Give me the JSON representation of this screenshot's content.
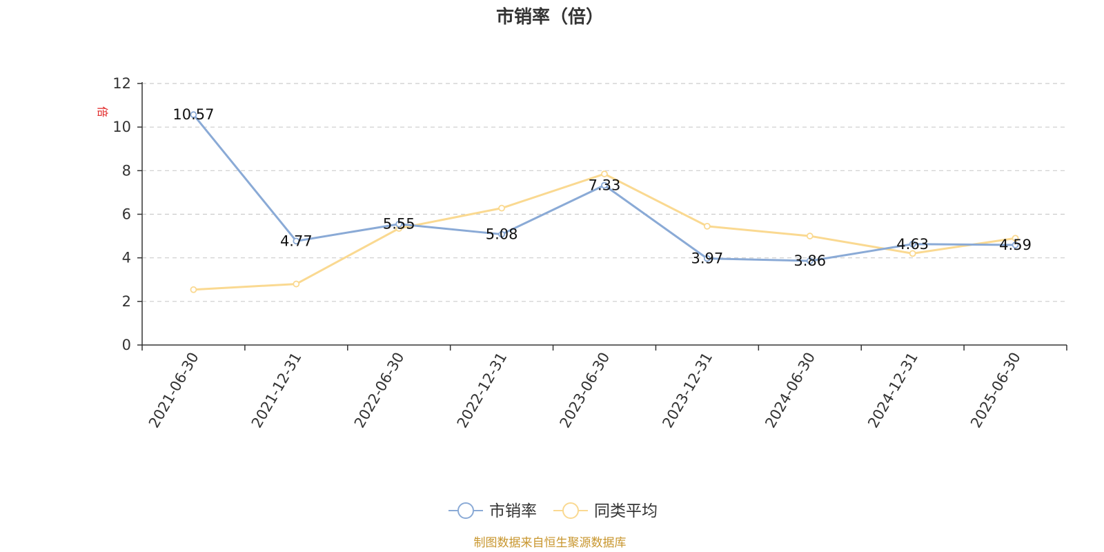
{
  "chart_data": {
    "type": "line",
    "title": "市销率（倍）",
    "y_unit_label": "倍",
    "categories": [
      "2021-06-30",
      "2021-12-31",
      "2022-06-30",
      "2022-12-31",
      "2023-06-30",
      "2023-12-31",
      "2024-06-30",
      "2024-12-31",
      "2025-06-30"
    ],
    "series": [
      {
        "name": "市销率",
        "color": "#8aaad6",
        "values": [
          10.57,
          4.77,
          5.55,
          5.08,
          7.33,
          3.97,
          3.86,
          4.63,
          4.59
        ],
        "labels": [
          "10.57",
          "4.77",
          "5.55",
          "5.08",
          "7.33",
          "3.97",
          "3.86",
          "4.63",
          "4.59"
        ]
      },
      {
        "name": "同类平均",
        "color": "#fad991",
        "values": [
          2.54,
          2.8,
          5.35,
          6.28,
          7.85,
          5.45,
          5.0,
          4.2,
          4.9
        ]
      }
    ],
    "yticks": [
      "0",
      "2",
      "4",
      "6",
      "8",
      "10",
      "12"
    ],
    "ylim": [
      0,
      12
    ],
    "grid": true,
    "legend_position": "bottom-center"
  },
  "source_note": "制图数据来自恒生聚源数据库"
}
